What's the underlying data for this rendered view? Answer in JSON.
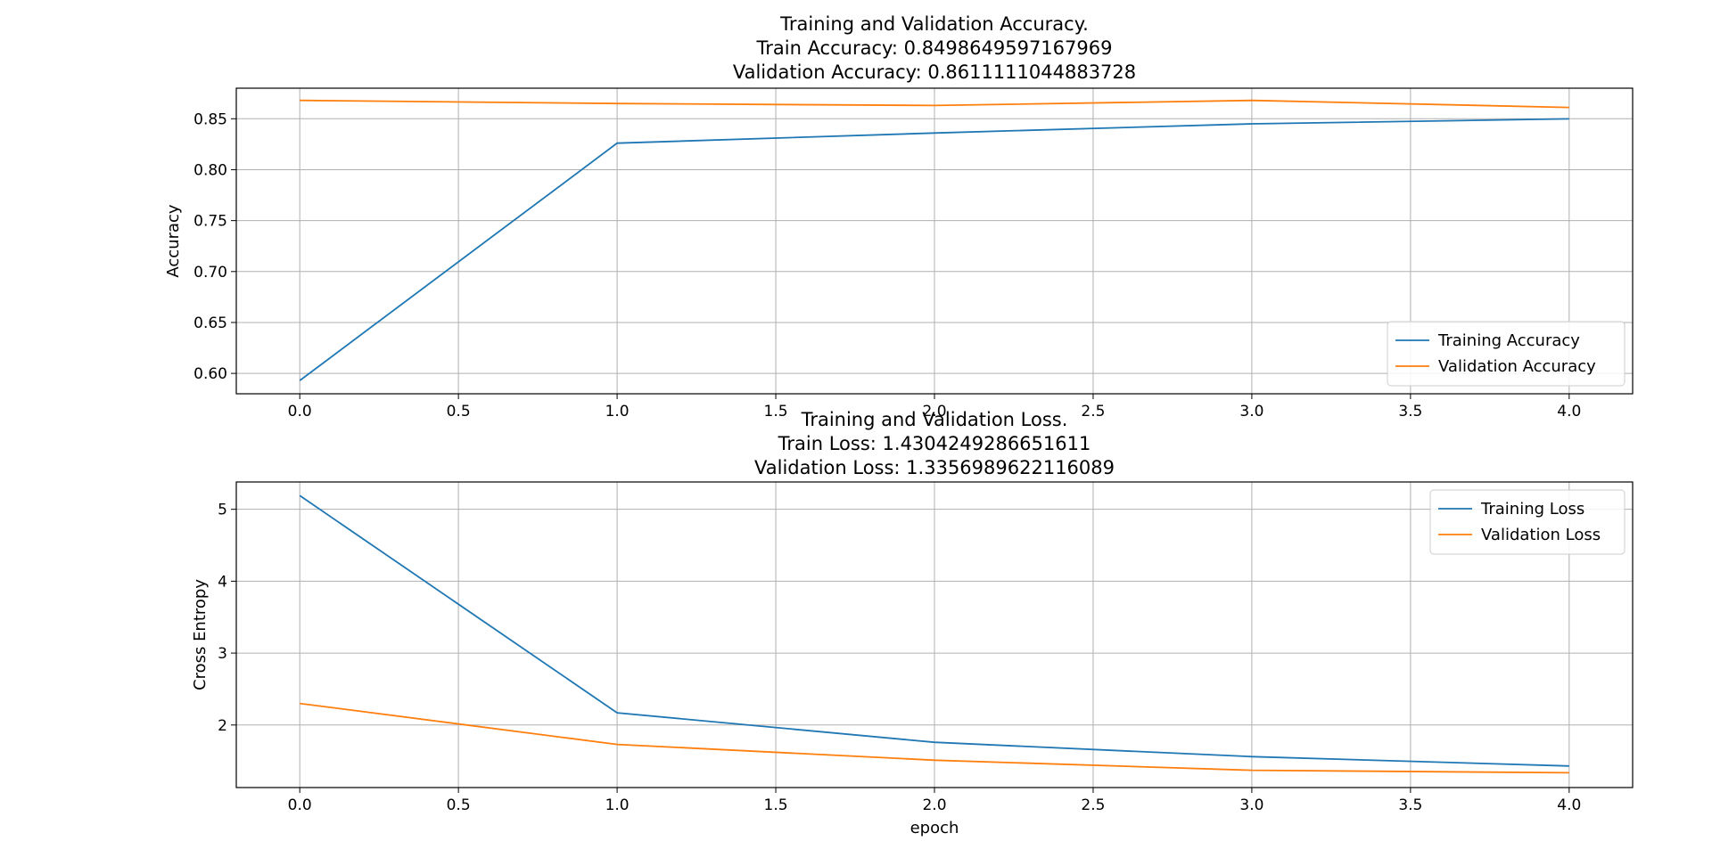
{
  "chart_data": [
    {
      "type": "line",
      "title": "Training and Validation Accuracy.\nTrain Accuracy: 0.8498649597167969\nValidation Accuracy: 0.8611111044883728",
      "title_lines": [
        "Training and Validation Accuracy.",
        "Train Accuracy: 0.8498649597167969",
        "Validation Accuracy: 0.8611111044883728"
      ],
      "xlabel": "",
      "ylabel": "Accuracy",
      "x": [
        0,
        1,
        2,
        3,
        4
      ],
      "xlim": [
        -0.2,
        4.2
      ],
      "ylim": [
        0.58,
        0.88
      ],
      "xticks": [
        0.0,
        0.5,
        1.0,
        1.5,
        2.0,
        2.5,
        3.0,
        3.5,
        4.0
      ],
      "xtick_labels": [
        "0.0",
        "0.5",
        "1.0",
        "1.5",
        "2.0",
        "2.5",
        "3.0",
        "3.5",
        "4.0"
      ],
      "yticks": [
        0.6,
        0.65,
        0.7,
        0.75,
        0.8,
        0.85
      ],
      "ytick_labels": [
        "0.60",
        "0.65",
        "0.70",
        "0.75",
        "0.80",
        "0.85"
      ],
      "grid": true,
      "legend_position": "lower right",
      "series": [
        {
          "name": "Training Accuracy",
          "color": "#1f77b4",
          "values": [
            0.593,
            0.826,
            0.836,
            0.845,
            0.8499
          ]
        },
        {
          "name": "Validation Accuracy",
          "color": "#ff7f0e",
          "values": [
            0.868,
            0.865,
            0.863,
            0.868,
            0.8611
          ]
        }
      ]
    },
    {
      "type": "line",
      "title": "Training and Validation Loss.\nTrain Loss: 1.4304249286651611\nValidation Loss: 1.3356989622116089",
      "title_lines": [
        "Training and Validation Loss.",
        "Train Loss: 1.4304249286651611",
        "Validation Loss: 1.3356989622116089"
      ],
      "xlabel": "epoch",
      "ylabel": "Cross Entropy",
      "x": [
        0,
        1,
        2,
        3,
        4
      ],
      "xlim": [
        -0.2,
        4.2
      ],
      "ylim": [
        1.13,
        5.38
      ],
      "xticks": [
        0.0,
        0.5,
        1.0,
        1.5,
        2.0,
        2.5,
        3.0,
        3.5,
        4.0
      ],
      "xtick_labels": [
        "0.0",
        "0.5",
        "1.0",
        "1.5",
        "2.0",
        "2.5",
        "3.0",
        "3.5",
        "4.0"
      ],
      "yticks": [
        2,
        3,
        4,
        5
      ],
      "ytick_labels": [
        "2",
        "3",
        "4",
        "5"
      ],
      "grid": true,
      "legend_position": "upper right",
      "series": [
        {
          "name": "Training Loss",
          "color": "#1f77b4",
          "values": [
            5.19,
            2.17,
            1.76,
            1.56,
            1.4304
          ]
        },
        {
          "name": "Validation Loss",
          "color": "#ff7f0e",
          "values": [
            2.3,
            1.73,
            1.51,
            1.37,
            1.3357
          ]
        }
      ]
    }
  ]
}
